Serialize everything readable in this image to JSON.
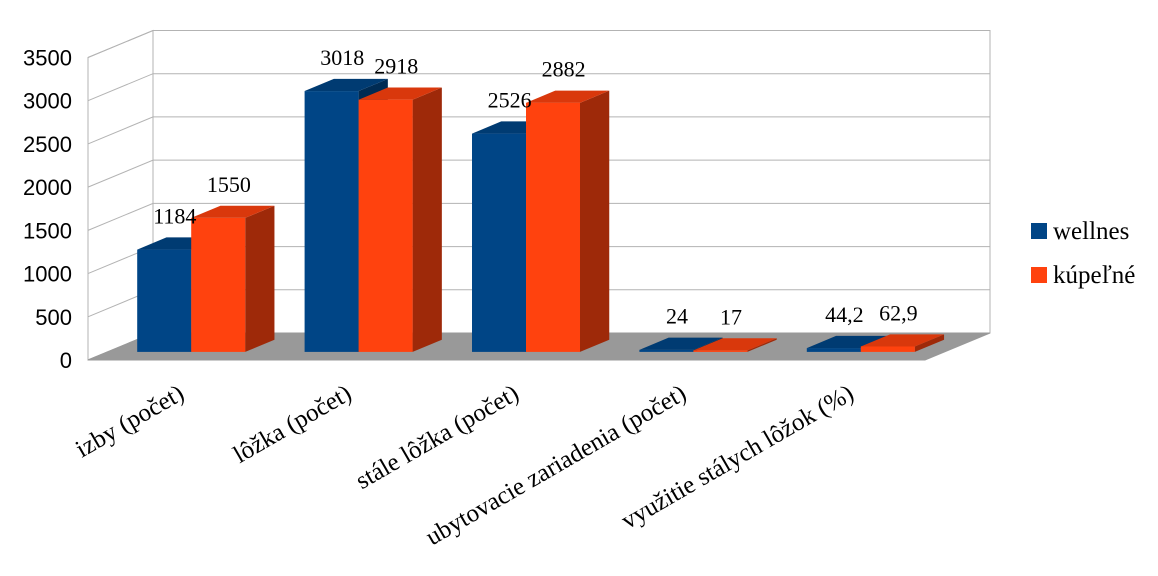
{
  "chart_data": {
    "type": "bar",
    "title": "",
    "xlabel": "",
    "ylabel": "",
    "ylim": [
      0,
      3500
    ],
    "yticks": [
      "0",
      "500",
      "1000",
      "1500",
      "2000",
      "2500",
      "3000",
      "3500"
    ],
    "grid": true,
    "three_d": true,
    "legend_position": "right",
    "categories": [
      "izby (počet)",
      "lôžka (počet)",
      "stále lôžka (počet)",
      "ubytovacie zariadenia (počet)",
      "využitie stálych lôžok (%)"
    ],
    "series": [
      {
        "name": "wellnes",
        "color": "#004586",
        "values": [
          1184,
          3018,
          2526,
          24,
          44.2
        ],
        "labels": [
          "1184",
          "3018",
          "2526",
          "24",
          "44,2"
        ]
      },
      {
        "name": "kúpeľné",
        "color": "#ff420e",
        "values": [
          1550,
          2918,
          2882,
          17,
          62.9
        ],
        "labels": [
          "1550",
          "2918",
          "2882",
          "17",
          "62,9"
        ]
      }
    ]
  }
}
